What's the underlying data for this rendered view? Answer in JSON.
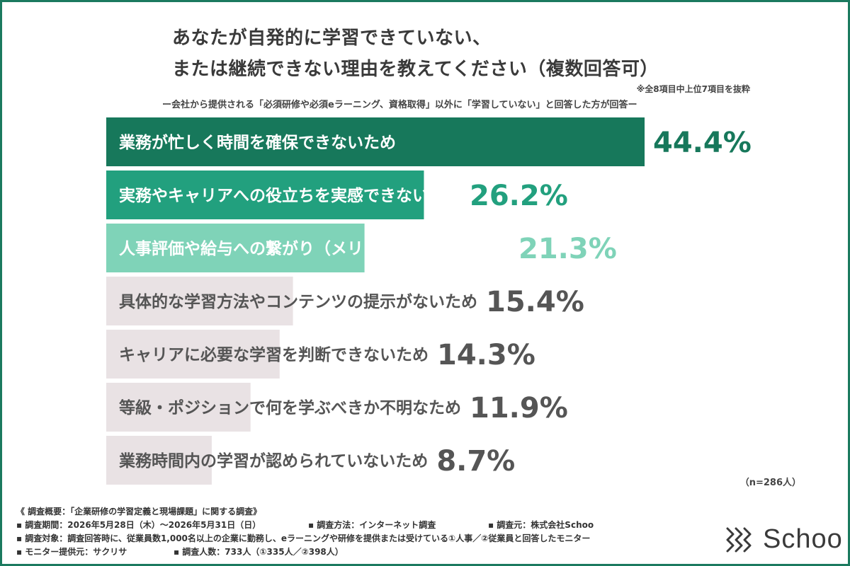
{
  "header": {
    "title_line1": "あなたが自発的に学習できていない、",
    "title_line2": "または継続できない理由を教えてください（複数回答可）",
    "note": "※全8項目中上位7項目を抜粋",
    "subtitle": "ー会社から提供される「必須研修や必須eラーニング、資格取得」以外に「学習していない」と回答した方が回答ー"
  },
  "chart_data": {
    "type": "bar",
    "orientation": "horizontal",
    "unit": "%",
    "categories": [
      "業務が忙しく時間を確保できないため",
      "実務やキャリアへの役立ちを実感できないため",
      "人事評価や給与への繋がり（メリット）が不明なため",
      "具体的な学習方法やコンテンツの提示がないため",
      "キャリアに必要な学習を判断できないため",
      "等級・ポジションで何を学ぶべきか不明なため",
      "業務時間内の学習が認められていないため"
    ],
    "values": [
      44.4,
      26.2,
      21.3,
      15.4,
      14.3,
      11.9,
      8.7
    ],
    "value_labels": [
      "44.4%",
      "26.2%",
      "21.3%",
      "15.4%",
      "14.3%",
      "11.9%",
      "8.7%"
    ],
    "bar_colors": [
      "#17785b",
      "#22a07e",
      "#7fd3b8",
      "#e9e2e4",
      "#e9e2e4",
      "#e9e2e4",
      "#e9e2e4"
    ],
    "value_colors": [
      "#17785b",
      "#22a07e",
      "#7fd3b8",
      "#555555",
      "#555555",
      "#555555",
      "#555555"
    ],
    "label_colors": [
      "#ffffff",
      "#ffffff",
      "#ffffff",
      "#555555",
      "#555555",
      "#555555",
      "#555555"
    ],
    "grid": false,
    "legend": "none"
  },
  "sample_size": "（n=286人）",
  "footer": {
    "summary": "《 調査概要：「企業研修の学習定義と現場課題」に関する調査》",
    "period": "▪ 調査期間：2026年5月28日（木）〜2026年5月31日（日）",
    "method": "▪ 調査方法：インターネット調査",
    "source": "▪ 調査元：株式会社Schoo",
    "target": "▪ 調査対象：調査回答時に、従業員数1,000名以上の企業に勤務し、eラーニングや研修を提供または受けている①人事／②従業員と回答したモニター",
    "provider": "▪ モニター提供元：サクリサ",
    "count": "▪ 調査人数：733人（①335人／②398人）"
  },
  "logo": {
    "text": "Schoo",
    "color": "#3a3a3a"
  }
}
